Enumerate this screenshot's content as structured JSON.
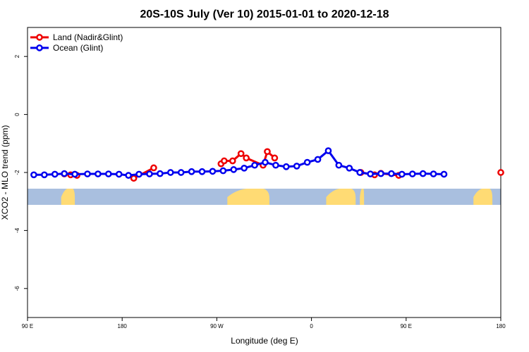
{
  "chart_data": {
    "type": "line",
    "title": "20S-10S July (Ver 10)   2015-01-01 to 2020-12-18",
    "xlabel": "Longitude (deg E)",
    "ylabel": "XCO2 - MLO trend (ppm)",
    "xlim": [
      90,
      450
    ],
    "ylim": [
      -7,
      3
    ],
    "x_ticks": [
      {
        "value": 90,
        "label": "90 E"
      },
      {
        "value": 180,
        "label": "180"
      },
      {
        "value": 270,
        "label": "90 W"
      },
      {
        "value": 360,
        "label": "0"
      },
      {
        "value": 450,
        "label": "90 E"
      },
      {
        "value": 540,
        "label": "180"
      }
    ],
    "y_ticks": [
      {
        "value": 2,
        "label": "2"
      },
      {
        "value": 0,
        "label": "0"
      },
      {
        "value": -2,
        "label": "-2"
      },
      {
        "value": -4,
        "label": "-4"
      },
      {
        "value": -6,
        "label": "-6"
      }
    ],
    "legend": {
      "position": "top-left",
      "entries": [
        {
          "label": "Land (Nadir&Glint)",
          "color": "#ee0000"
        },
        {
          "label": "Ocean (Glint)",
          "color": "#0000ee"
        }
      ]
    },
    "series": [
      {
        "name": "Land (Nadir&Glint)",
        "color": "#ee0000",
        "x": [
          125,
          131,
          137,
          210,
          191,
          274,
          277,
          285,
          293,
          298,
          314,
          318,
          325,
          407,
          420,
          426,
          443,
          540
        ],
        "y": [
          -2.05,
          -2.08,
          -2.1,
          -1.84,
          -2.2,
          -1.7,
          -1.6,
          -1.6,
          -1.35,
          -1.5,
          -1.75,
          -1.28,
          -1.5,
          -2.0,
          -2.08,
          -2.03,
          -2.1,
          -2.0
        ],
        "gaps_after": [
          2,
          4,
          12,
          16
        ]
      },
      {
        "name": "Ocean (Glint)",
        "color": "#0000ee",
        "x": [
          96,
          106,
          116,
          125,
          135,
          147,
          157,
          167,
          177,
          186,
          196,
          206,
          216,
          226,
          236,
          246,
          256,
          266,
          276,
          286,
          296,
          306,
          316,
          326,
          336,
          346,
          356,
          366,
          376,
          386,
          396,
          406,
          416,
          426,
          436,
          446,
          456,
          466,
          476,
          486
        ],
        "y": [
          -2.08,
          -2.08,
          -2.06,
          -2.04,
          -2.06,
          -2.05,
          -2.05,
          -2.05,
          -2.06,
          -2.1,
          -2.06,
          -2.05,
          -2.04,
          -2.0,
          -2.0,
          -1.97,
          -1.97,
          -1.96,
          -1.94,
          -1.9,
          -1.85,
          -1.75,
          -1.65,
          -1.75,
          -1.8,
          -1.78,
          -1.65,
          -1.55,
          -1.25,
          -1.75,
          -1.85,
          -2.0,
          -2.05,
          -2.04,
          -2.04,
          -2.06,
          -2.05,
          -2.04,
          -2.05,
          -2.06
        ]
      }
    ],
    "background_map": {
      "ocean_color": "#a9bfdf",
      "land_color": "#ffdb74",
      "land_regions": [
        [
          122,
          135
        ],
        [
          280,
          320
        ],
        [
          374,
          402
        ],
        [
          406,
          410
        ],
        [
          514,
          532
        ]
      ]
    }
  }
}
